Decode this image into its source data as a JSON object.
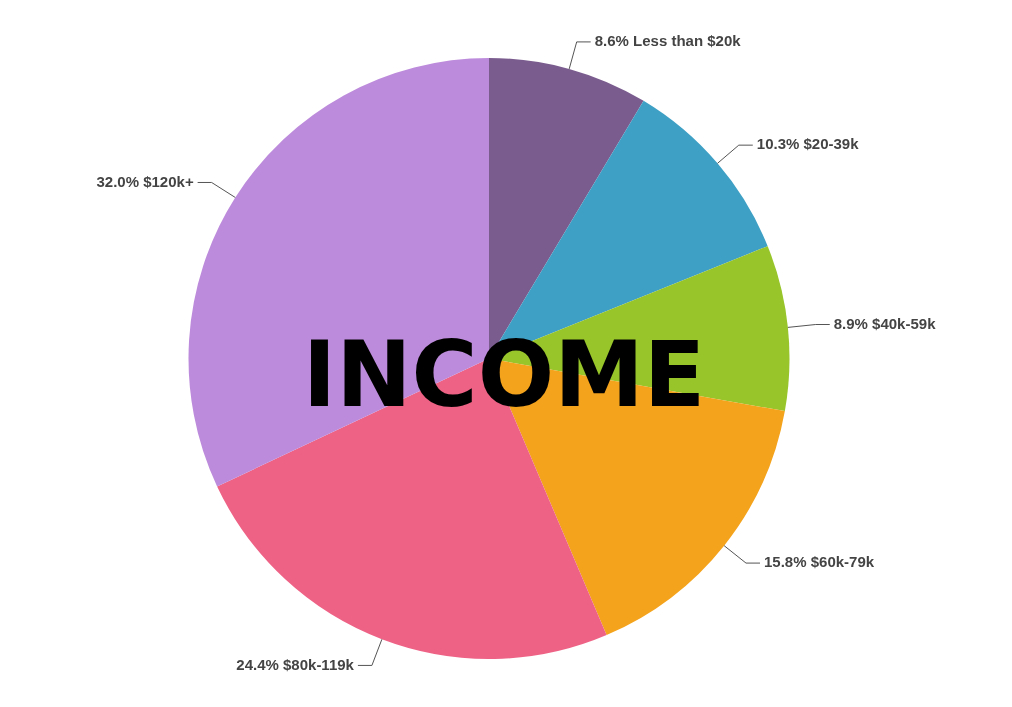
{
  "chart_data": {
    "type": "pie",
    "title": "INCOME",
    "categories": [
      "Less than $20k",
      "$20-39k",
      "$40k-59k",
      "$60k-79k",
      "$80k-119k",
      "$120k+"
    ],
    "values": [
      8.6,
      10.3,
      8.9,
      15.8,
      24.4,
      32.0
    ],
    "value_labels": [
      "8.6%",
      "10.3%",
      "8.9%",
      "15.8%",
      "24.4%",
      "32.0%"
    ],
    "colors": [
      "#7b5c8f",
      "#3fa0c5",
      "#97c52a",
      "#f4a31c",
      "#ee6286",
      "#bd8bdb"
    ],
    "legend": false
  }
}
